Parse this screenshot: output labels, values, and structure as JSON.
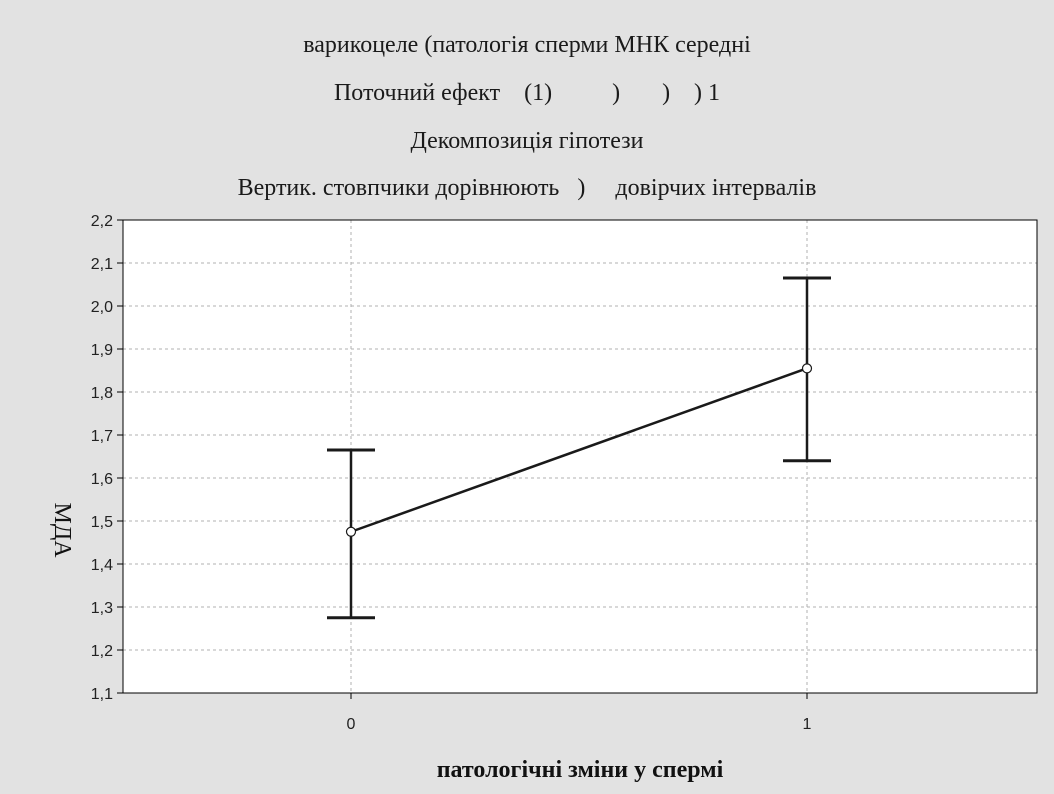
{
  "chart_data": {
    "type": "line",
    "title_lines": [
      "варикоцеле (патологія сперми МНК середні",
      "Поточний ефект    (1)          )       )    ) 1",
      "Декомпозиція гіпотези",
      "Вертик. стовпчики дорівнюють   )     довірчих інтервалів"
    ],
    "xlabel": "патологічні зміни у спермі",
    "ylabel": "МДА",
    "categories": [
      "0",
      "1"
    ],
    "series": [
      {
        "values": [
          1.475,
          1.855
        ],
        "ci_low": [
          1.275,
          1.64
        ],
        "ci_high": [
          1.665,
          2.065
        ]
      }
    ],
    "ylim": [
      1.1,
      2.2
    ],
    "yticks": [
      "1,1",
      "1,2",
      "1,3",
      "1,4",
      "1,5",
      "1,6",
      "1,7",
      "1,8",
      "1,9",
      "2,0",
      "2,1",
      "2,2"
    ],
    "grid": true,
    "colors": {
      "background": "#e2e2e2",
      "plot": "#ffffff",
      "line": "#1a1a1a",
      "grid": "#b0b0b0"
    }
  }
}
